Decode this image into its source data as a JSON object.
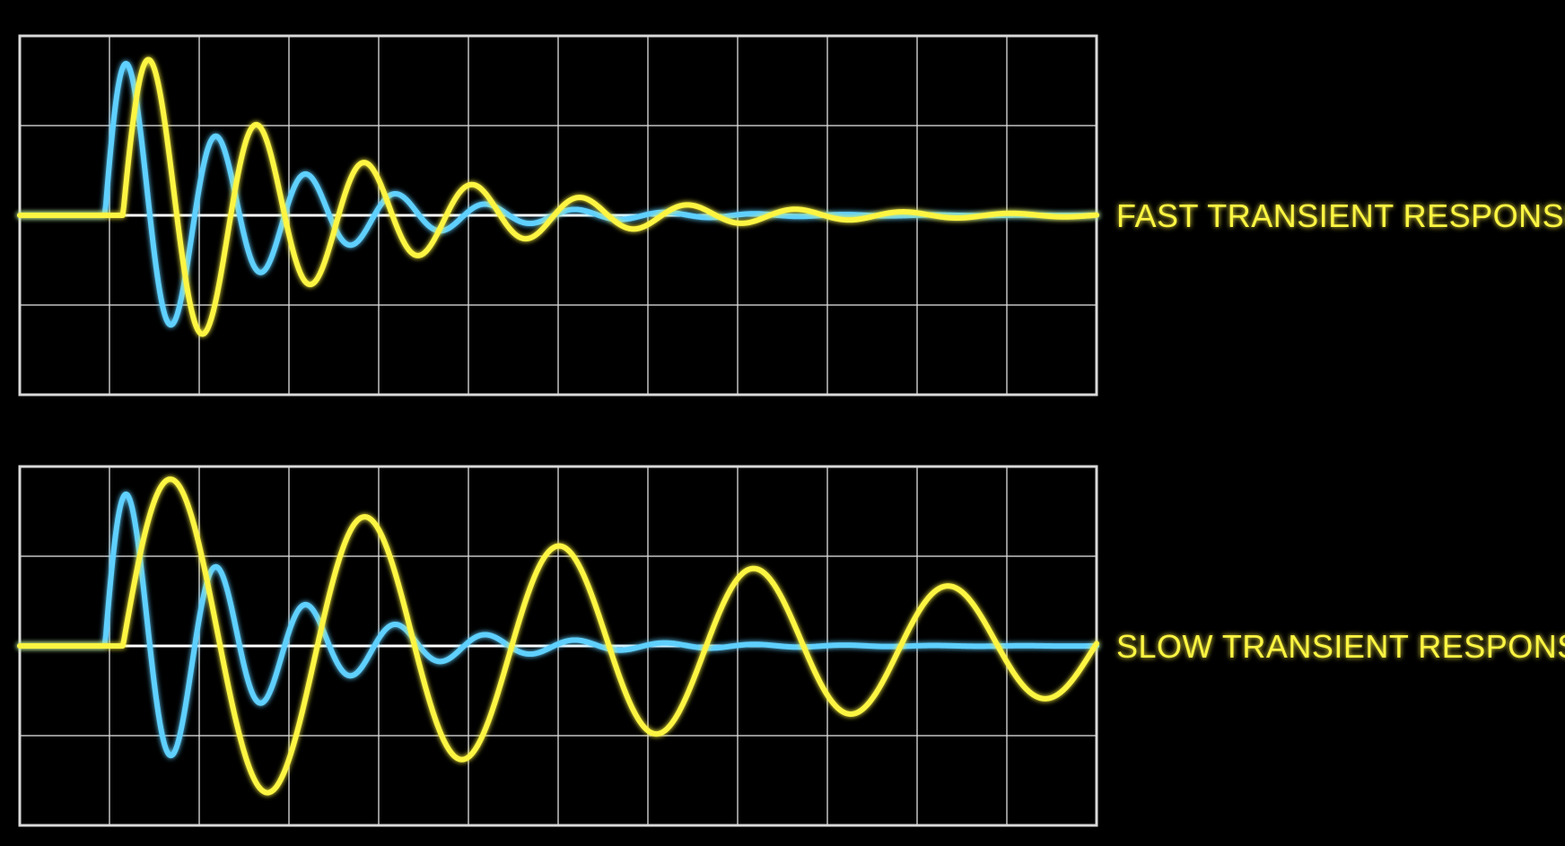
{
  "colors": {
    "background": "#000000",
    "grid": "#d9d9d9",
    "baseline": "#ffffff",
    "reference_trace": "#5fd0ff",
    "response_trace": "#fdf542",
    "label": "#fdf542"
  },
  "chart_data": [
    {
      "type": "line",
      "label": "FAST TRANSIENT RESPONSE",
      "grid": true,
      "grid_divisions": {
        "x": 12,
        "y": 4
      },
      "xlim": [
        0,
        12
      ],
      "ylim": [
        -2,
        2
      ],
      "series": [
        {
          "color": "#5fd0ff",
          "model": {
            "start": 0.95,
            "omega": 6.28,
            "decay": 0.65,
            "amplitude": 1.98
          }
        },
        {
          "color": "#fdf542",
          "model": {
            "start": 1.15,
            "omega": 5.23,
            "decay": 0.45,
            "amplitude": 1.98
          }
        }
      ]
    },
    {
      "type": "line",
      "label": "SLOW TRANSIENT RESPONSE",
      "grid": true,
      "grid_divisions": {
        "x": 12,
        "y": 4
      },
      "xlim": [
        0,
        12
      ],
      "ylim": [
        -2,
        2
      ],
      "series": [
        {
          "color": "#5fd0ff",
          "model": {
            "start": 0.95,
            "omega": 6.28,
            "decay": 0.65,
            "amplitude": 1.98
          }
        },
        {
          "color": "#fdf542",
          "model": {
            "start": 1.15,
            "omega": 2.9,
            "decay": 0.118,
            "amplitude": 1.98
          }
        }
      ]
    }
  ]
}
